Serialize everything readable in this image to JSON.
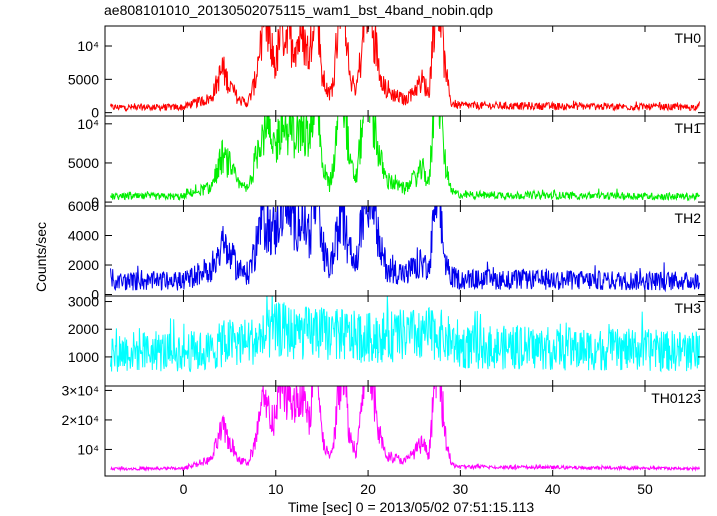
{
  "title": "ae808101010_20130502075115_wam1_bst_4band_nobin.qdp",
  "xlabel": "Time [sec] 0 = 2013/05/02 07:51:15.113",
  "ylabel": "Counts/sec",
  "chart_data": {
    "type": "line",
    "title": "ae808101010_20130502075115_wam1_bst_4band_nobin.qdp",
    "xlabel": "Time [sec] 0 = 2013/05/02 07:51:15.113",
    "ylabel": "Counts/sec",
    "xlim": [
      -8.5,
      56.5
    ],
    "x_ticks": [
      0,
      10,
      20,
      30,
      40,
      50
    ],
    "x_tick_labels": [
      "0",
      "10",
      "20",
      "30",
      "40",
      "50"
    ],
    "burst_peaks_x": [
      4.2,
      8.8,
      11.3,
      14.3,
      17.2,
      19.8,
      20.5,
      25.9,
      27.5
    ],
    "panels": [
      {
        "name": "TH0",
        "color": "#ff0000",
        "ylim": [
          -500,
          13000
        ],
        "yticks": [
          0,
          5000,
          10000
        ],
        "ytick_labels": [
          "0",
          "5000",
          "10⁴"
        ],
        "baseline": 800,
        "noise": 500,
        "shape": [
          [
            -8.5,
            0
          ],
          [
            0,
            0
          ],
          [
            1,
            0.04
          ],
          [
            3,
            0.1
          ],
          [
            4.2,
            0.42
          ],
          [
            5,
            0.25
          ],
          [
            6,
            0.08
          ],
          [
            7,
            0.05
          ],
          [
            7.8,
            0.3
          ],
          [
            8.5,
            0.88
          ],
          [
            9.2,
            0.8
          ],
          [
            10,
            0.45
          ],
          [
            10.6,
            0.9
          ],
          [
            11.3,
            0.75
          ],
          [
            12,
            0.72
          ],
          [
            13,
            0.75
          ],
          [
            13.7,
            0.55
          ],
          [
            14.3,
            1.55
          ],
          [
            15,
            0.35
          ],
          [
            15.8,
            0.12
          ],
          [
            16.3,
            0.3
          ],
          [
            17.2,
            1.6
          ],
          [
            18,
            0.35
          ],
          [
            18.7,
            0.2
          ],
          [
            19.3,
            0.6
          ],
          [
            19.8,
            1.25
          ],
          [
            20.5,
            0.9
          ],
          [
            21.2,
            0.45
          ],
          [
            22,
            0.18
          ],
          [
            24,
            0.08
          ],
          [
            25.9,
            0.3
          ],
          [
            26.6,
            0.15
          ],
          [
            27.5,
            1.55
          ],
          [
            28.3,
            0.45
          ],
          [
            29,
            0.05
          ],
          [
            30,
            0.02
          ],
          [
            56.5,
            0
          ]
        ]
      },
      {
        "name": "TH1",
        "color": "#00ee00",
        "ylim": [
          -500,
          11000
        ],
        "yticks": [
          0,
          5000,
          10000
        ],
        "ytick_labels": [
          "0",
          "5000",
          "10⁴"
        ],
        "baseline": 700,
        "noise": 450,
        "shape": [
          [
            -8.5,
            0
          ],
          [
            0,
            0
          ],
          [
            1,
            0.05
          ],
          [
            3,
            0.1
          ],
          [
            4.2,
            0.45
          ],
          [
            5,
            0.35
          ],
          [
            6,
            0.12
          ],
          [
            7,
            0.08
          ],
          [
            7.8,
            0.4
          ],
          [
            8.5,
            0.75
          ],
          [
            9.2,
            0.7
          ],
          [
            10,
            0.55
          ],
          [
            10.6,
            0.8
          ],
          [
            11.3,
            0.75
          ],
          [
            12,
            0.7
          ],
          [
            13,
            0.75
          ],
          [
            13.7,
            0.6
          ],
          [
            14.3,
            1.5
          ],
          [
            15,
            0.4
          ],
          [
            15.8,
            0.12
          ],
          [
            16.3,
            0.35
          ],
          [
            17.2,
            1.5
          ],
          [
            18,
            0.35
          ],
          [
            18.7,
            0.2
          ],
          [
            19.3,
            0.7
          ],
          [
            19.8,
            1.6
          ],
          [
            20.5,
            0.95
          ],
          [
            21.2,
            0.45
          ],
          [
            22,
            0.18
          ],
          [
            24,
            0.08
          ],
          [
            25.9,
            0.3
          ],
          [
            26.6,
            0.15
          ],
          [
            27.5,
            1.4
          ],
          [
            28.3,
            0.4
          ],
          [
            29,
            0.05
          ],
          [
            30,
            0.02
          ],
          [
            56.5,
            0
          ]
        ]
      },
      {
        "name": "TH2",
        "color": "#0000ee",
        "ylim": [
          -100,
          6000
        ],
        "yticks": [
          0,
          2000,
          4000,
          6000
        ],
        "ytick_labels": [
          "0",
          "2000",
          "4000",
          "6000"
        ],
        "baseline": 900,
        "noise": 650,
        "shape": [
          [
            -8.5,
            0
          ],
          [
            0,
            0
          ],
          [
            1,
            0.05
          ],
          [
            3,
            0.15
          ],
          [
            4.2,
            0.4
          ],
          [
            5,
            0.3
          ],
          [
            6,
            0.12
          ],
          [
            7,
            0.08
          ],
          [
            7.8,
            0.35
          ],
          [
            8.5,
            0.7
          ],
          [
            9.2,
            0.6
          ],
          [
            10,
            0.55
          ],
          [
            10.6,
            0.9
          ],
          [
            11.3,
            0.75
          ],
          [
            12,
            0.65
          ],
          [
            13,
            0.7
          ],
          [
            13.7,
            0.5
          ],
          [
            14.3,
            1.0
          ],
          [
            15,
            0.35
          ],
          [
            15.8,
            0.15
          ],
          [
            16.3,
            0.3
          ],
          [
            17.2,
            0.8
          ],
          [
            18,
            0.3
          ],
          [
            18.7,
            0.2
          ],
          [
            19.3,
            0.6
          ],
          [
            19.8,
            1.2
          ],
          [
            20.5,
            0.8
          ],
          [
            21.2,
            0.4
          ],
          [
            22,
            0.15
          ],
          [
            24,
            0.08
          ],
          [
            25.9,
            0.2
          ],
          [
            26.6,
            0.1
          ],
          [
            27.5,
            1.05
          ],
          [
            28.3,
            0.25
          ],
          [
            29,
            0.05
          ],
          [
            30,
            0.02
          ],
          [
            56.5,
            0
          ]
        ]
      },
      {
        "name": "TH3",
        "color": "#00ffff",
        "ylim": [
          -50,
          3200
        ],
        "yticks": [
          1000,
          2000,
          3000
        ],
        "ytick_labels": [
          "1000",
          "2000",
          "3000"
        ],
        "baseline": 1200,
        "noise": 750,
        "shape": [
          [
            -8.5,
            0
          ],
          [
            3,
            0
          ],
          [
            4.5,
            0.1
          ],
          [
            8,
            0.12
          ],
          [
            10.5,
            0.25
          ],
          [
            12,
            0.2
          ],
          [
            14.5,
            0.2
          ],
          [
            20,
            0.15
          ],
          [
            27.5,
            0.2
          ],
          [
            30,
            0.05
          ],
          [
            56.5,
            0
          ]
        ]
      },
      {
        "name": "TH0123",
        "color": "#ff00ff",
        "ylim": [
          1000,
          31500
        ],
        "yticks": [
          10000,
          20000,
          30000
        ],
        "ytick_labels": [
          "10⁴",
          "2×10⁴",
          "3×10⁴"
        ],
        "baseline": 3500,
        "noise": 500,
        "shape": [
          [
            -8.5,
            0
          ],
          [
            0,
            0
          ],
          [
            1,
            0.04
          ],
          [
            3,
            0.1
          ],
          [
            4.2,
            0.45
          ],
          [
            5,
            0.3
          ],
          [
            6,
            0.1
          ],
          [
            7,
            0.06
          ],
          [
            7.8,
            0.3
          ],
          [
            8.5,
            0.7
          ],
          [
            9.2,
            0.65
          ],
          [
            10,
            0.5
          ],
          [
            10.6,
            1.1
          ],
          [
            11.3,
            0.8
          ],
          [
            12,
            0.7
          ],
          [
            13,
            0.8
          ],
          [
            13.7,
            0.55
          ],
          [
            14.3,
            1.45
          ],
          [
            15,
            0.35
          ],
          [
            15.8,
            0.12
          ],
          [
            16.3,
            0.3
          ],
          [
            17.2,
            1.35
          ],
          [
            18,
            0.35
          ],
          [
            18.7,
            0.2
          ],
          [
            19.3,
            0.6
          ],
          [
            19.8,
            1.45
          ],
          [
            20.5,
            0.85
          ],
          [
            21.2,
            0.4
          ],
          [
            22,
            0.15
          ],
          [
            24,
            0.08
          ],
          [
            25.9,
            0.28
          ],
          [
            26.6,
            0.14
          ],
          [
            27.5,
            1.4
          ],
          [
            28.3,
            0.4
          ],
          [
            29,
            0.05
          ],
          [
            30,
            0.02
          ],
          [
            56.5,
            0
          ]
        ]
      }
    ]
  }
}
